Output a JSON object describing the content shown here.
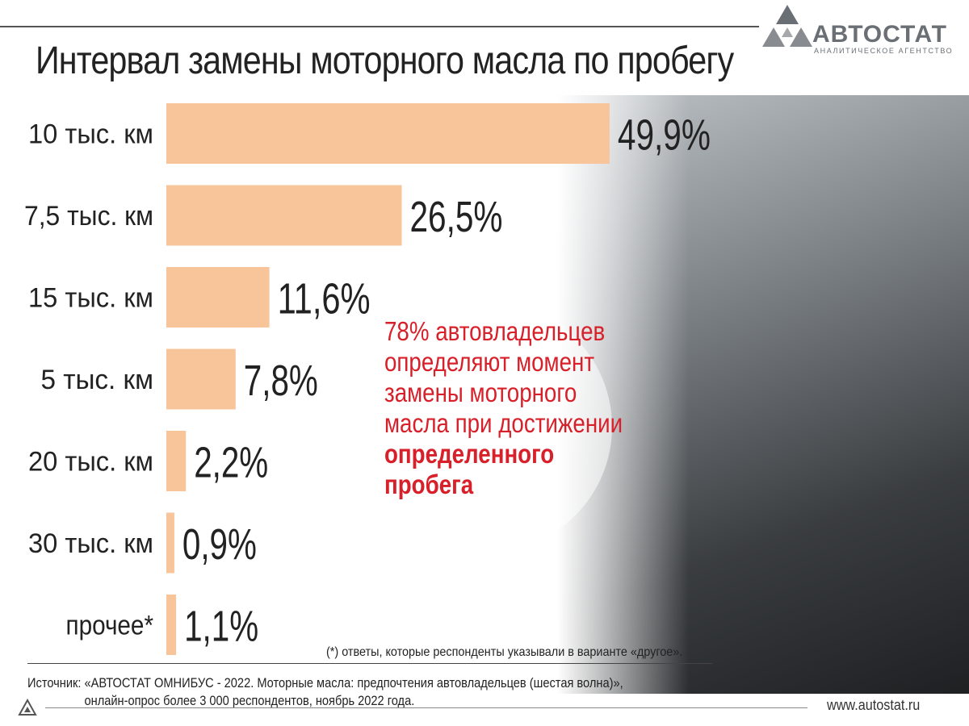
{
  "title": "Интервал замены моторного масла по пробегу",
  "logo": {
    "name": "АВТОСТАТ",
    "subtitle": "АНАЛИТИЧЕСКОЕ АГЕНТСТВО"
  },
  "colors": {
    "bar": "#f8c49a",
    "accent": "#d8202a",
    "logo": "#6a6f75"
  },
  "chart_data": {
    "type": "bar",
    "orientation": "horizontal",
    "categories": [
      "10 тыс. км",
      "7,5 тыс. км",
      "15 тыс. км",
      "5 тыс. км",
      "20 тыс. км",
      "30 тыс. км",
      "прочее*"
    ],
    "values": [
      49.9,
      26.5,
      11.6,
      7.8,
      2.2,
      0.9,
      1.1
    ],
    "value_labels": [
      "49,9%",
      "26,5%",
      "11,6%",
      "7,8%",
      "2,2%",
      "0,9%",
      "1,1%"
    ],
    "unit": "%",
    "grid": false,
    "legend": "none"
  },
  "callout": {
    "highlight": "78%",
    "text": " автовладельцев определяют момент замены моторного масла при достижении ",
    "bold": "определенного пробега"
  },
  "footnote": "(*) ответы, которые респонденты указывали в варианте «другое».",
  "source": {
    "line1": "Источник: «АВТОСТАТ ОМНИБУС - 2022. Моторные масла: предпочтения автовладельцев (шестая волна)»,",
    "line2": "онлайн-опрос более 3 000 респондентов, ноябрь 2022 года."
  },
  "website": "www.autostat.ru",
  "icons": {
    "logo": "triangle-hexagon-logo-icon",
    "footer": "small-triangle-logo-icon"
  }
}
